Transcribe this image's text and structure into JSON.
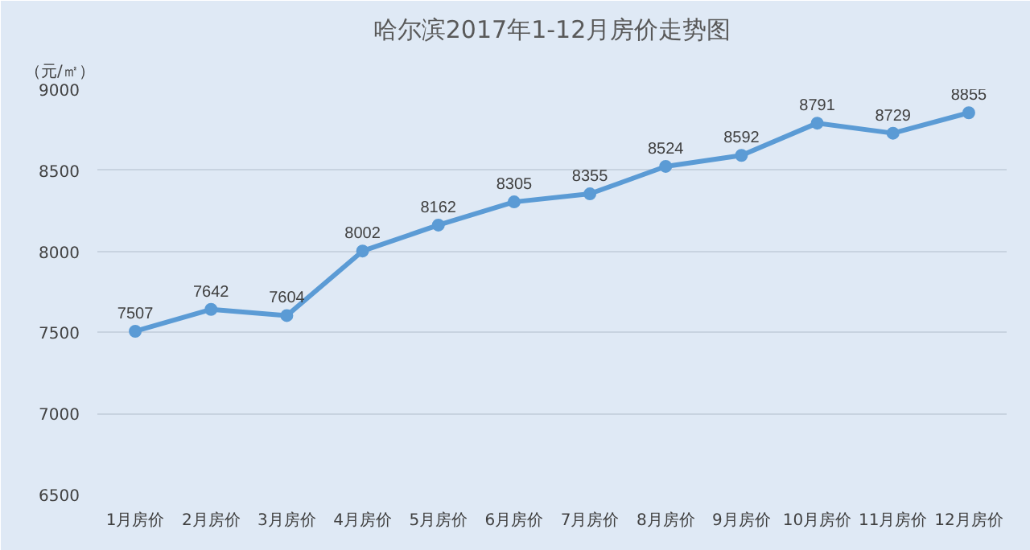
{
  "chart_data": {
    "type": "line",
    "title": "哈尔滨2017年1-12月房价走势图",
    "ylabel": "（元/㎡）",
    "categories": [
      "1月房价",
      "2月房价",
      "3月房价",
      "4月房价",
      "5月房价",
      "6月房价",
      "7月房价",
      "8月房价",
      "9月房价",
      "10月房价",
      "11月房价",
      "12月房价"
    ],
    "series": [
      {
        "color": "#5b9bd5",
        "values": [
          7507,
          7642,
          7604,
          8002,
          8162,
          8305,
          8355,
          8524,
          8592,
          8791,
          8729,
          8855
        ]
      }
    ],
    "ylim": [
      6500,
      9000
    ],
    "yticks": [
      6500,
      7000,
      7500,
      8000,
      8500,
      9000
    ],
    "grid": "y",
    "marker": "circle",
    "data_labels": true
  }
}
